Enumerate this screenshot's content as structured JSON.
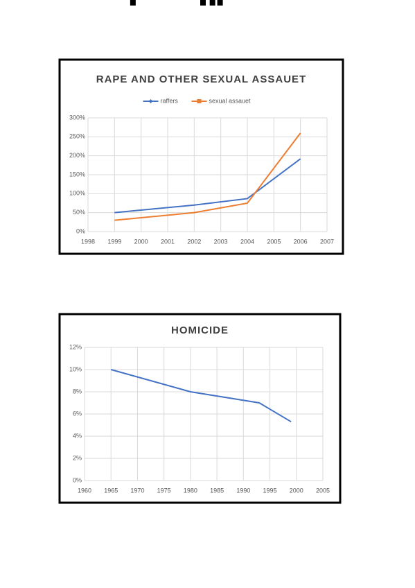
{
  "chart_data": [
    {
      "type": "line",
      "title": "RAPE AND OTHER SEXUAL ASSAUET",
      "x": [
        1999,
        2002,
        2004,
        2006
      ],
      "series": [
        {
          "name": "raffers",
          "color": "#4472c4",
          "marker": "diamond",
          "values": [
            50,
            70,
            87,
            192
          ]
        },
        {
          "name": "sexual assauet",
          "color": "#ed7d31",
          "marker": "square",
          "values": [
            30,
            50,
            75,
            260
          ]
        }
      ],
      "xlim": [
        1998,
        2007
      ],
      "xticks": [
        1998,
        1999,
        2000,
        2001,
        2002,
        2003,
        2004,
        2005,
        2006,
        2007
      ],
      "ylim": [
        0,
        300
      ],
      "yticks": [
        {
          "value": 0,
          "label": "0%"
        },
        {
          "value": 50,
          "label": "50%"
        },
        {
          "value": 100,
          "label": "100%"
        },
        {
          "value": 150,
          "label": "150%"
        },
        {
          "value": 200,
          "label": "200%"
        },
        {
          "value": 250,
          "label": "250%"
        },
        {
          "value": 300,
          "label": "300%"
        }
      ],
      "grid": true,
      "legend": "top"
    },
    {
      "type": "line",
      "title": "HOMICIDE",
      "x": [
        1965,
        1980,
        1993,
        1999
      ],
      "series": [
        {
          "color": "#4472c4",
          "marker": "diamond",
          "values": [
            10,
            8,
            7,
            5.3
          ]
        }
      ],
      "xlim": [
        1960,
        2005
      ],
      "xticks": [
        1960,
        1965,
        1970,
        1975,
        1980,
        1985,
        1990,
        1995,
        2000,
        2005
      ],
      "ylim": [
        0,
        12
      ],
      "yticks": [
        {
          "value": 0,
          "label": "0%"
        },
        {
          "value": 2,
          "label": "2%"
        },
        {
          "value": 4,
          "label": "4%"
        },
        {
          "value": 6,
          "label": "6%"
        },
        {
          "value": 8,
          "label": "8%"
        },
        {
          "value": 10,
          "label": "10%"
        },
        {
          "value": 12,
          "label": "12%"
        }
      ],
      "grid": true
    }
  ]
}
